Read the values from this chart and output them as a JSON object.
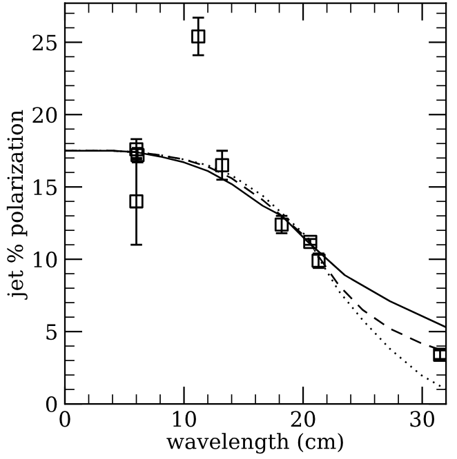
{
  "chart_data": {
    "type": "scatter",
    "xlabel": "wavelength (cm)",
    "ylabel": "jet % polarization",
    "xlim": [
      0,
      32
    ],
    "ylim": [
      0,
      27.7
    ],
    "xticks": [
      0,
      10,
      20,
      30
    ],
    "yticks": [
      0,
      5,
      10,
      15,
      20,
      25
    ],
    "grid": false,
    "legend": false,
    "series": [
      {
        "color": "#000000",
        "marker": "square",
        "x": [
          6,
          6.1,
          6,
          11.2,
          13.2,
          18.2,
          20.6,
          21.3,
          31.5
        ],
        "values": [
          17.6,
          17.2,
          14.0,
          25.4,
          16.5,
          12.4,
          11.2,
          9.9,
          3.4
        ],
        "errors": [
          0.7,
          0.5,
          3.0,
          1.3,
          1.0,
          0.6,
          0.2,
          0.5,
          0.3
        ]
      },
      {
        "type": "line",
        "color": "#000000",
        "line_style": "solid",
        "x": [
          0,
          4,
          6,
          8,
          10,
          12,
          14,
          16.6,
          18.2,
          20.4,
          23.5,
          27.3,
          32
        ],
        "values": [
          17.5,
          17.5,
          17.4,
          17.1,
          16.7,
          16.1,
          15.2,
          13.7,
          13.0,
          11.2,
          8.9,
          7.1,
          5.3
        ]
      },
      {
        "type": "line",
        "color": "#000000",
        "line_style": "dashed",
        "x": [
          0,
          4,
          6,
          8,
          10,
          12,
          14,
          16.6,
          18.2,
          20.4,
          21.3,
          23,
          25,
          27.3,
          29.9,
          32
        ],
        "values": [
          17.5,
          17.5,
          17.4,
          17.2,
          16.9,
          16.4,
          15.6,
          14.1,
          13.0,
          11.4,
          10.2,
          8.2,
          6.5,
          5.2,
          4.2,
          3.6
        ]
      },
      {
        "type": "line",
        "color": "#000000",
        "line_style": "dotted",
        "x": [
          0,
          4,
          6,
          8,
          10,
          12,
          14,
          16.6,
          18.2,
          20.4,
          21.3,
          23,
          25,
          27.3,
          29.9,
          32
        ],
        "values": [
          17.5,
          17.5,
          17.4,
          17.2,
          16.9,
          16.5,
          15.8,
          14.4,
          13.2,
          11.5,
          10.1,
          7.8,
          5.8,
          3.8,
          2.0,
          1.0
        ]
      }
    ]
  }
}
